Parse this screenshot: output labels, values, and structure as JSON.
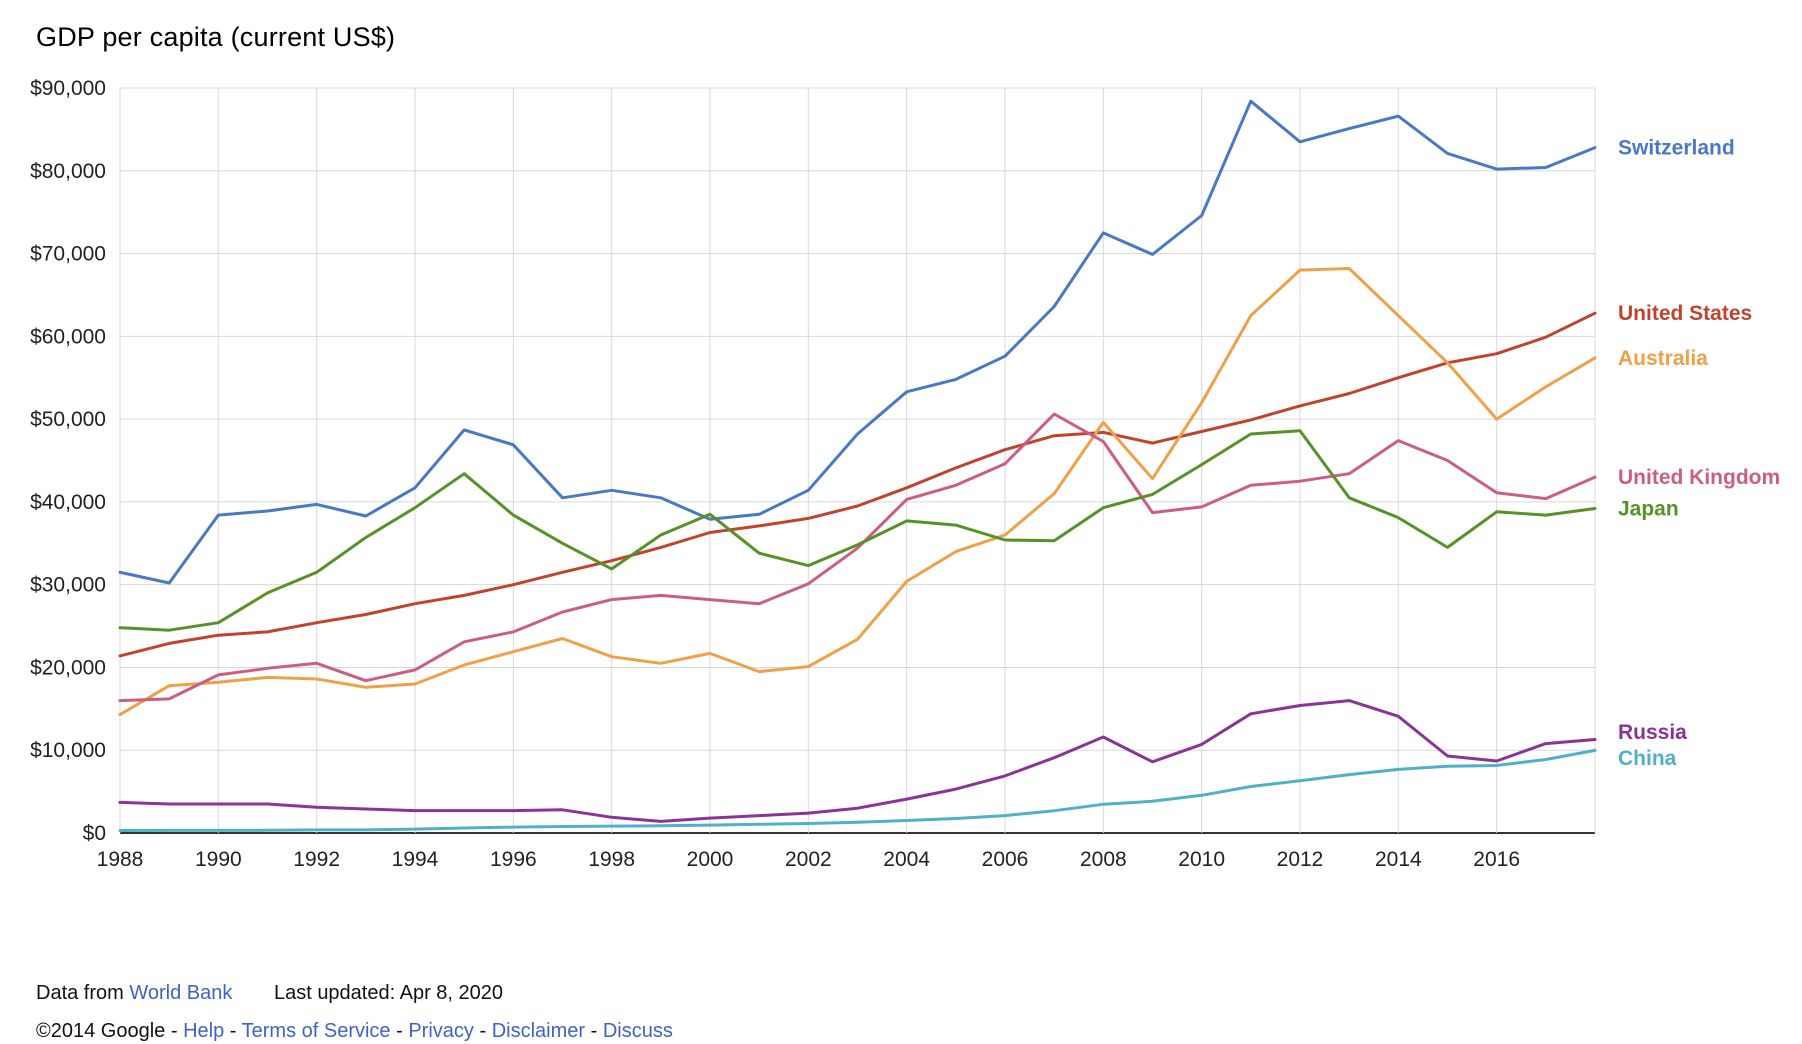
{
  "title": "GDP per capita (current US$)",
  "colors": {
    "grid": "#d9d9d9",
    "axis_line": "#333333",
    "axis_text": "#222222",
    "title_text": "#000000",
    "link": "#3e63c8",
    "text": "#111111"
  },
  "footer": {
    "data_from": "Data from",
    "source_link": "World Bank",
    "last_updated": "Last updated: Apr 8, 2020",
    "copyright": "©2014 Google",
    "separator": "-",
    "links": [
      "Help",
      "Terms of Service",
      "Privacy",
      "Disclaimer",
      "Discuss"
    ]
  },
  "chart_data": {
    "type": "line",
    "title": "GDP per capita (current US$)",
    "xlabel": "",
    "ylabel": "",
    "grid": true,
    "legend_position": "right",
    "ylim": [
      0,
      90000
    ],
    "x": [
      1988,
      1989,
      1990,
      1991,
      1992,
      1993,
      1994,
      1995,
      1996,
      1997,
      1998,
      1999,
      2000,
      2001,
      2002,
      2003,
      2004,
      2005,
      2006,
      2007,
      2008,
      2009,
      2010,
      2011,
      2012,
      2013,
      2014,
      2015,
      2016,
      2017,
      2018
    ],
    "x_ticks": [
      1988,
      1990,
      1992,
      1994,
      1996,
      1998,
      2000,
      2002,
      2004,
      2006,
      2008,
      2010,
      2012,
      2014,
      2016
    ],
    "y_ticks": [
      {
        "value": 0,
        "label": "$0"
      },
      {
        "value": 10000,
        "label": "$10,000"
      },
      {
        "value": 20000,
        "label": "$20,000"
      },
      {
        "value": 30000,
        "label": "$30,000"
      },
      {
        "value": 40000,
        "label": "$40,000"
      },
      {
        "value": 50000,
        "label": "$50,000"
      },
      {
        "value": 60000,
        "label": "$60,000"
      },
      {
        "value": 70000,
        "label": "$70,000"
      },
      {
        "value": 80000,
        "label": "$80,000"
      },
      {
        "value": 90000,
        "label": "$90,000"
      }
    ],
    "series": [
      {
        "name": "Switzerland",
        "color": "#4a79c4",
        "values": [
          31500,
          30200,
          38400,
          38900,
          39700,
          38300,
          41700,
          48700,
          46900,
          40500,
          41400,
          40500,
          37900,
          38500,
          41400,
          48200,
          53300,
          54800,
          57600,
          63600,
          72500,
          69900,
          74600,
          88400,
          83500,
          85100,
          86600,
          82100,
          80200,
          80400,
          82800
        ]
      },
      {
        "name": "United States",
        "color": "#c1432e",
        "values": [
          21400,
          22900,
          23900,
          24300,
          25400,
          26400,
          27700,
          28700,
          30000,
          31500,
          32900,
          34500,
          36300,
          37100,
          38000,
          39500,
          41700,
          44100,
          46300,
          48000,
          48400,
          47100,
          48500,
          49900,
          51600,
          53100,
          55000,
          56800,
          57900,
          59900,
          62800
        ]
      },
      {
        "name": "Australia",
        "color": "#efa049",
        "values": [
          14300,
          17800,
          18200,
          18800,
          18600,
          17600,
          18000,
          20300,
          21900,
          23500,
          21300,
          20500,
          21700,
          19500,
          20100,
          23400,
          30400,
          34000,
          36000,
          41000,
          49600,
          42800,
          52000,
          62500,
          68000,
          68200,
          62500,
          56800,
          50000,
          53900,
          57400
        ]
      },
      {
        "name": "United Kingdom",
        "color": "#cc5e84",
        "values": [
          16000,
          16200,
          19100,
          19900,
          20500,
          18400,
          19700,
          23100,
          24300,
          26700,
          28200,
          28700,
          28200,
          27700,
          30100,
          34400,
          40300,
          42000,
          44600,
          50600,
          47300,
          38700,
          39400,
          42000,
          42500,
          43400,
          47400,
          45000,
          41100,
          40400,
          43000
        ]
      },
      {
        "name": "Japan",
        "color": "#569226",
        "values": [
          24800,
          24500,
          25400,
          29000,
          31500,
          35700,
          39300,
          43400,
          38400,
          35000,
          31900,
          36000,
          38500,
          33800,
          32300,
          34800,
          37700,
          37200,
          35400,
          35300,
          39300,
          40900,
          44500,
          48200,
          48600,
          40500,
          38100,
          34500,
          38800,
          38400,
          39200
        ]
      },
      {
        "name": "Russia",
        "color": "#8c3397",
        "values": [
          3700,
          3500,
          3500,
          3500,
          3100,
          2900,
          2700,
          2700,
          2700,
          2800,
          1900,
          1400,
          1800,
          2100,
          2400,
          3000,
          4100,
          5300,
          6900,
          9100,
          11600,
          8600,
          10700,
          14400,
          15400,
          16000,
          14100,
          9300,
          8700,
          10800,
          11300
        ]
      },
      {
        "name": "China",
        "color": "#4fb1c9",
        "values": [
          300,
          310,
          320,
          330,
          370,
          380,
          470,
          610,
          710,
          780,
          830,
          870,
          960,
          1050,
          1150,
          1290,
          1510,
          1750,
          2100,
          2690,
          3470,
          3830,
          4550,
          5620,
          6320,
          7050,
          7680,
          8070,
          8150,
          8880,
          9980
        ]
      }
    ]
  }
}
